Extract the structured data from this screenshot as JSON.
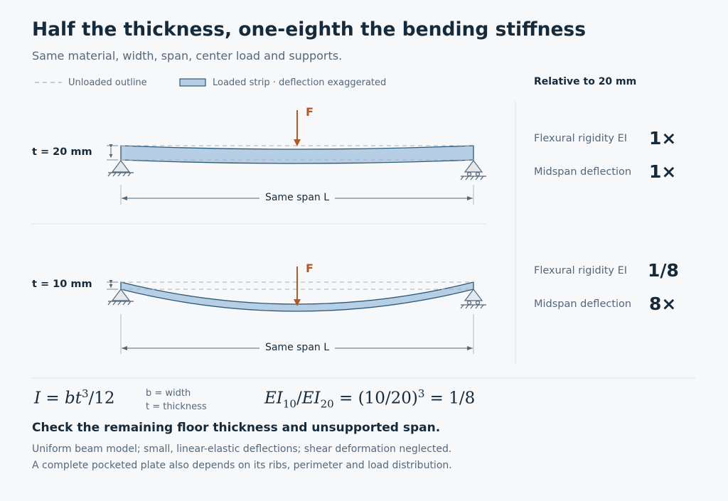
{
  "title": "Half the thickness, one-eighth the bending stiffness",
  "subtitle": "Same material, width, span, center load and supports.",
  "legend": {
    "unloaded": "Unloaded outline",
    "loaded": "Loaded strip · deflection exaggerated"
  },
  "colors": {
    "strip_fill": "#b7cfe4",
    "strip_stroke": "#2c5878",
    "load_arrow": "#b05a2a",
    "text_dark": "#152a3b",
    "text_muted": "#55687a",
    "background": "#f6f8fa"
  },
  "comparison": {
    "heading": "Relative to 20 mm",
    "beams": [
      {
        "thickness_label": "t = 20 mm",
        "load_label": "F",
        "span_label": "Same span L",
        "rigidity_label": "Flexural rigidity EI",
        "rigidity_value": "1×",
        "deflection_label": "Midspan deflection",
        "deflection_value": "1×"
      },
      {
        "thickness_label": "t = 10 mm",
        "load_label": "F",
        "span_label": "Same span L",
        "rigidity_label": "Flexural rigidity EI",
        "rigidity_value": "1/8",
        "deflection_label": "Midspan deflection",
        "deflection_value": "8×"
      }
    ]
  },
  "formulas": {
    "moment_of_inertia": {
      "lhs": "I",
      "equals": " = ",
      "b": "bt",
      "exp": "3",
      "tail": "/12"
    },
    "definitions": [
      "b = width",
      "t = thickness"
    ],
    "ratio": {
      "ei": "EI",
      "sub1": "10",
      "slash": "/",
      "sub2": "20",
      "mid": " = (10/20)",
      "exp": "3",
      "result": " = 1/8"
    }
  },
  "callout": "Check the remaining floor thickness and unsupported span.",
  "notes": [
    "Uniform beam model; small, linear-elastic deflections; shear deformation neglected.",
    "A complete pocketed plate also depends on its ribs, perimeter and load distribution."
  ]
}
